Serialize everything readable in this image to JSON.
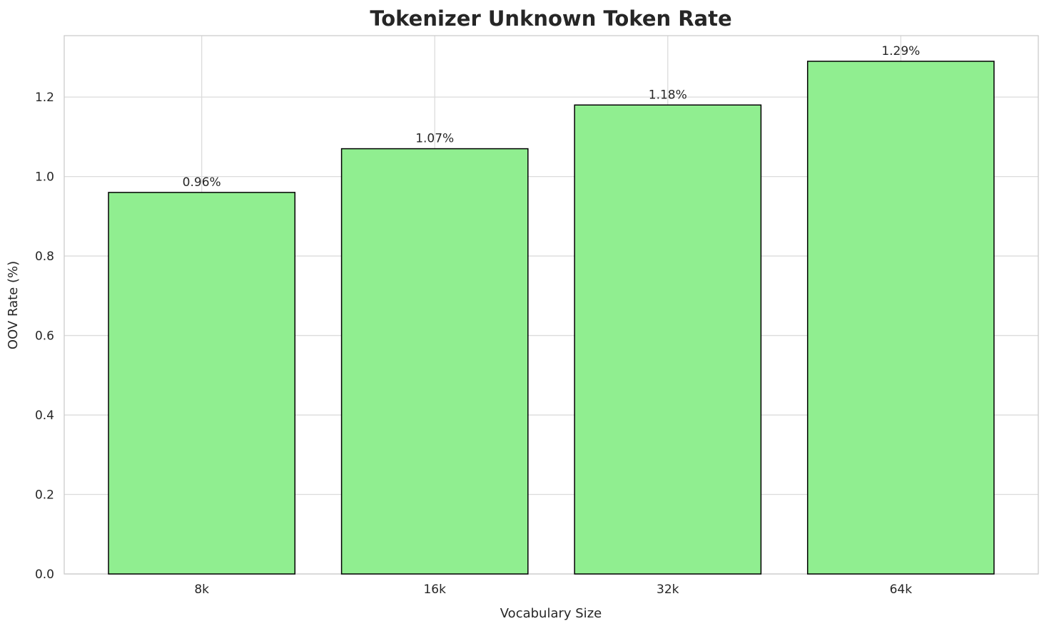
{
  "chart_data": {
    "type": "bar",
    "title": "Tokenizer Unknown Token Rate",
    "xlabel": "Vocabulary Size",
    "ylabel": "OOV Rate (%)",
    "categories": [
      "8k",
      "16k",
      "32k",
      "64k"
    ],
    "values": [
      0.96,
      1.07,
      1.18,
      1.29
    ],
    "value_labels": [
      "0.96%",
      "1.07%",
      "1.18%",
      "1.29%"
    ],
    "ylim": [
      0,
      1.3545
    ],
    "yticks": [
      0.0,
      0.2,
      0.4,
      0.6,
      0.8,
      1.0,
      1.2
    ],
    "grid": "on",
    "legend": "none",
    "bar_color": "#90EE90",
    "bar_edge_color": "#000000",
    "grid_color": "#dcdcdc",
    "spine_color": "#cccccc",
    "text_color": "#262626",
    "background": "#ffffff"
  }
}
